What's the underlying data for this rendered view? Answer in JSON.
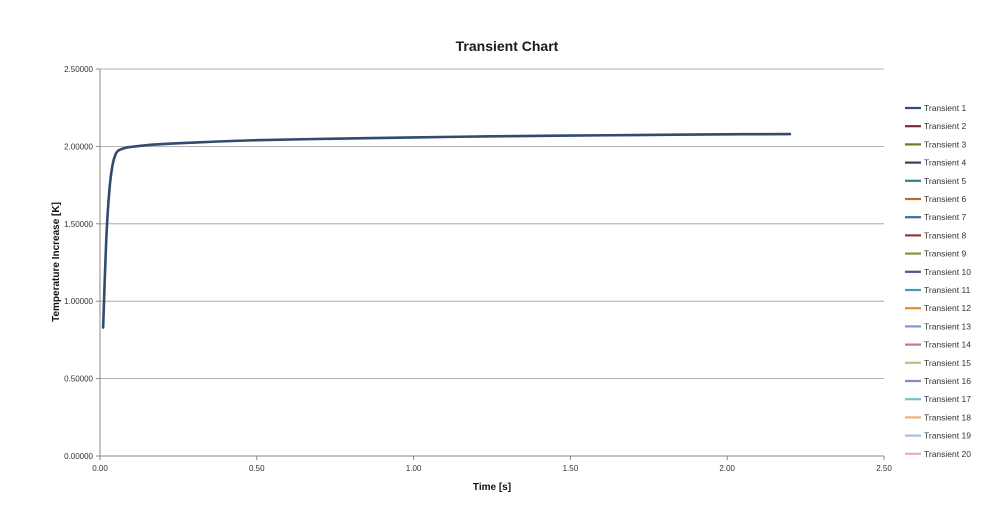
{
  "chart_data": {
    "type": "line",
    "title": "Transient Chart",
    "xlabel": "Time [s]",
    "ylabel": "Temperature Increase [K]",
    "xlim": [
      0,
      2.5
    ],
    "ylim": [
      0,
      2.5
    ],
    "x_ticks": [
      0.0,
      0.5,
      1.0,
      1.5,
      2.0,
      2.5
    ],
    "x_tick_labels": [
      "0.00",
      "0.50",
      "1.00",
      "1.50",
      "2.00",
      "2.50"
    ],
    "y_ticks": [
      0.0,
      0.5,
      1.0,
      1.5,
      2.0,
      2.5
    ],
    "y_tick_labels": [
      "0.00000",
      "0.50000",
      "1.00000",
      "1.50000",
      "2.00000",
      "2.50000"
    ],
    "grid": "horizontal",
    "legend_position": "right",
    "series": [
      {
        "name": "Transient 1",
        "color": "#2f4b6e",
        "x": [
          0.01,
          0.02,
          0.03,
          0.04,
          0.05,
          0.06,
          0.08,
          0.1,
          0.15,
          0.2,
          0.3,
          0.5,
          0.75,
          1.0,
          1.25,
          1.5,
          1.75,
          2.0,
          2.2
        ],
        "y": [
          0.83,
          1.4,
          1.72,
          1.88,
          1.95,
          1.975,
          1.99,
          1.997,
          2.008,
          2.015,
          2.025,
          2.04,
          2.05,
          2.058,
          2.065,
          2.07,
          2.074,
          2.078,
          2.08
        ]
      },
      {
        "name": "Transient 2",
        "color": "#7b2c2c",
        "x": [],
        "y": []
      },
      {
        "name": "Transient 3",
        "color": "#6b7a2a",
        "x": [],
        "y": []
      },
      {
        "name": "Transient 4",
        "color": "#4a3566",
        "x": [],
        "y": []
      },
      {
        "name": "Transient 5",
        "color": "#2b7f8c",
        "x": [],
        "y": []
      },
      {
        "name": "Transient 6",
        "color": "#c06a26",
        "x": [],
        "y": []
      },
      {
        "name": "Transient 7",
        "color": "#3d6a9e",
        "x": [],
        "y": []
      },
      {
        "name": "Transient 8",
        "color": "#8e3b38",
        "x": [],
        "y": []
      },
      {
        "name": "Transient 9",
        "color": "#839a3c",
        "x": [],
        "y": []
      },
      {
        "name": "Transient 10",
        "color": "#5c4a8a",
        "x": [],
        "y": []
      },
      {
        "name": "Transient 11",
        "color": "#3aa0b3",
        "x": [],
        "y": []
      },
      {
        "name": "Transient 12",
        "color": "#e58a2e",
        "x": [],
        "y": []
      },
      {
        "name": "Transient 13",
        "color": "#7a9ccc",
        "x": [],
        "y": []
      },
      {
        "name": "Transient 14",
        "color": "#c77b78",
        "x": [],
        "y": []
      },
      {
        "name": "Transient 15",
        "color": "#b3c47f",
        "x": [],
        "y": []
      },
      {
        "name": "Transient 16",
        "color": "#9684b3",
        "x": [],
        "y": []
      },
      {
        "name": "Transient 17",
        "color": "#79bfcc",
        "x": [],
        "y": []
      },
      {
        "name": "Transient 18",
        "color": "#f0b27a",
        "x": [],
        "y": []
      },
      {
        "name": "Transient 19",
        "color": "#a9c2e0",
        "x": [],
        "y": []
      },
      {
        "name": "Transient 20",
        "color": "#e6b0ae",
        "x": [],
        "y": []
      }
    ]
  }
}
